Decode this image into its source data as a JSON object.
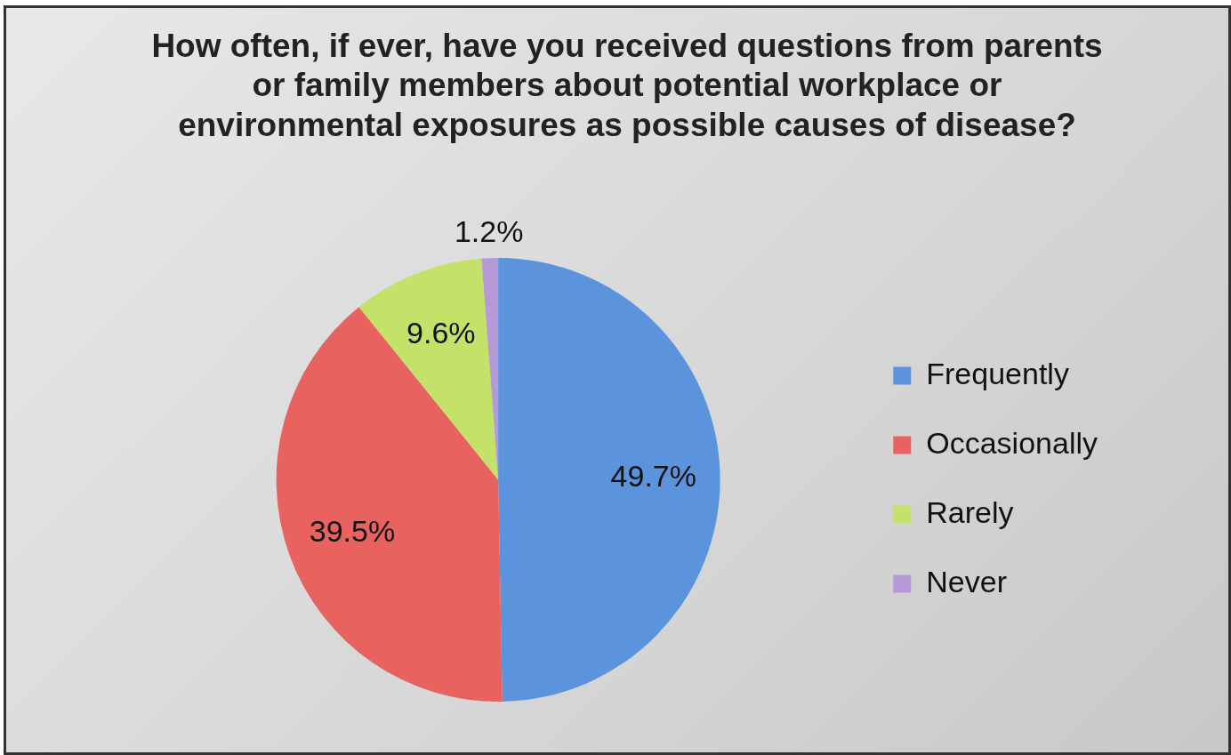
{
  "chart_data": {
    "type": "pie",
    "title": "How often, if ever, have you received questions from parents or family members about potential workplace or environmental exposures as possible causes of disease?",
    "categories": [
      "Frequently",
      "Occasionally",
      "Rarely",
      "Never"
    ],
    "values": [
      49.7,
      39.5,
      9.6,
      1.2
    ],
    "colors": [
      "#5b93dd",
      "#e8625f",
      "#c4e26a",
      "#b69ad8"
    ],
    "value_labels": [
      "49.7%",
      "39.5%",
      "9.6%",
      "1.2%"
    ],
    "legend": "right"
  }
}
